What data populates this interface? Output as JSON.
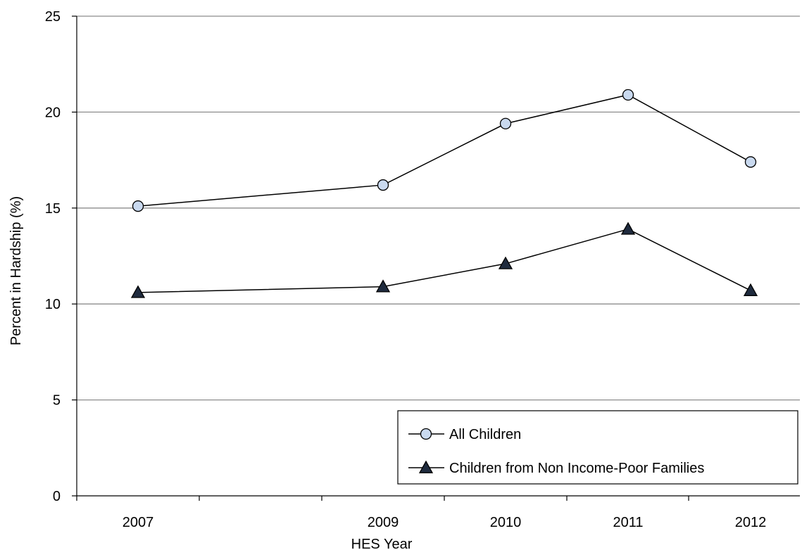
{
  "chart_data": {
    "type": "line",
    "title": "",
    "xlabel": "HES Year",
    "ylabel": "Percent in Hardship (%)",
    "x": [
      2007,
      2009,
      2010,
      2011,
      2012
    ],
    "x_tick_labels": [
      "2007",
      "2009",
      "2010",
      "2011",
      "2012"
    ],
    "ylim": [
      0,
      25
    ],
    "y_ticks": [
      0,
      5,
      10,
      15,
      20,
      25
    ],
    "grid": "horizontal",
    "legend_position": "bottom-right",
    "series": [
      {
        "name": "All Children",
        "marker": "circle",
        "marker_color": "#c9d9ef",
        "line_color": "#000000",
        "values": [
          15.1,
          16.2,
          19.4,
          20.9,
          17.4
        ]
      },
      {
        "name": "Children from Non Income-Poor Families",
        "marker": "triangle",
        "marker_color": "#1f2b3e",
        "line_color": "#000000",
        "values": [
          10.6,
          10.9,
          12.1,
          13.9,
          10.7
        ]
      }
    ]
  }
}
